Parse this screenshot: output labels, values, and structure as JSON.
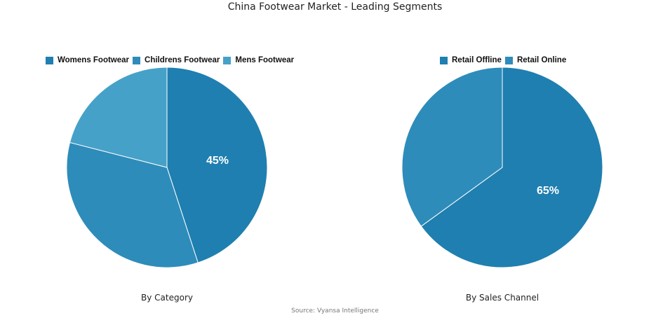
{
  "title": "China Footwear Market - Leading Segments",
  "source": "Source: Vyansa Intelligence",
  "colors": {
    "dark": "#1f7fb0",
    "mid": "#2e8cba",
    "light": "#46a1c8"
  },
  "chart_data": [
    {
      "type": "pie",
      "title": "By Category",
      "legend_position": "top",
      "categories": [
        "Womens Footwear",
        "Childrens Footwear",
        "Mens Footwear"
      ],
      "values": [
        45,
        34,
        21
      ],
      "labels_shown": [
        "45%"
      ],
      "colors": [
        "#1f7fb0",
        "#2e8cba",
        "#46a1c8"
      ]
    },
    {
      "type": "pie",
      "title": "By Sales Channel",
      "legend_position": "top",
      "categories": [
        "Retail Offline",
        "Retail Online"
      ],
      "values": [
        65,
        35
      ],
      "labels_shown": [
        "65%"
      ],
      "colors": [
        "#1f7fb0",
        "#2e8cba"
      ]
    }
  ],
  "left": {
    "caption": "By Category",
    "legend": [
      "Womens Footwear",
      "Childrens Footwear",
      "Mens Footwear"
    ],
    "label": "45%"
  },
  "right": {
    "caption": "By Sales Channel",
    "legend": [
      "Retail Offline",
      "Retail Online"
    ],
    "label": "65%"
  }
}
